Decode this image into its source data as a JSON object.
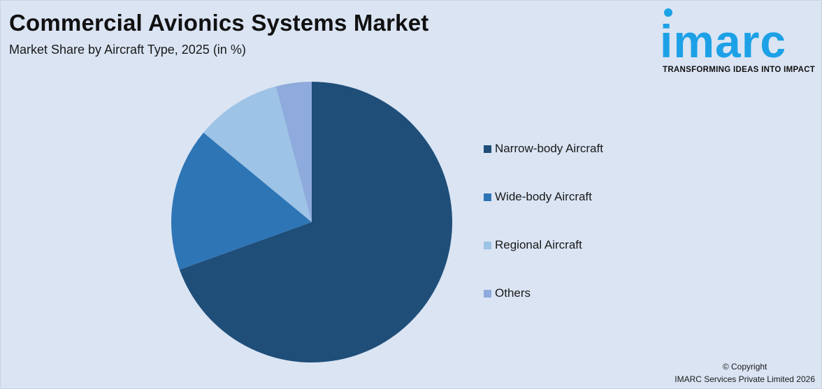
{
  "header": {
    "title": "Commercial Avionics Systems Market",
    "subtitle": "Market Share by Aircraft Type, 2025 (in %)"
  },
  "logo": {
    "word": "imarc",
    "tagline": "TRANSFORMING IDEAS INTO IMPACT",
    "color": "#1da1e6"
  },
  "chart_data": {
    "type": "pie",
    "categories": [
      "Narrow-body Aircraft",
      "Wide-body Aircraft",
      "Regional Aircraft",
      "Others"
    ],
    "values": [
      69.5,
      16.5,
      9.9,
      4.1
    ],
    "colors": [
      "#1f4e79",
      "#2e75b6",
      "#9dc3e6",
      "#8faadc"
    ],
    "start_angle_deg": 0,
    "direction": "clockwise",
    "legend_position": "right"
  },
  "footer": {
    "copyright_line1": "© Copyright",
    "copyright_line2": "IMARC Services Private Limited 2026"
  }
}
